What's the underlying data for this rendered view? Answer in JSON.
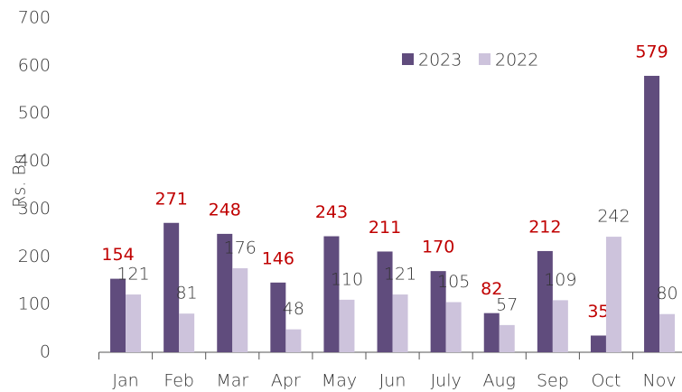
{
  "chart_data": {
    "type": "bar",
    "y_label": "Rs. Bn",
    "categories": [
      "Jan",
      "Feb",
      "Mar",
      "Apr",
      "May",
      "Jun",
      "July",
      "Aug",
      "Sep",
      "Oct",
      "Nov"
    ],
    "series": [
      {
        "name": "2023",
        "color": "#604c7d",
        "label_color": "#c00000",
        "values": [
          154,
          271,
          248,
          146,
          243,
          211,
          170,
          82,
          212,
          35,
          579
        ]
      },
      {
        "name": "2022",
        "color": "#cdc3dc",
        "label_color": "#333333",
        "values": [
          121,
          81,
          176,
          48,
          110,
          121,
          105,
          57,
          109,
          242,
          80
        ]
      }
    ],
    "ylim": [
      0,
      700
    ],
    "yticks": [
      0,
      100,
      200,
      300,
      400,
      500,
      600,
      700
    ],
    "grid": false,
    "legend": "top-right"
  }
}
